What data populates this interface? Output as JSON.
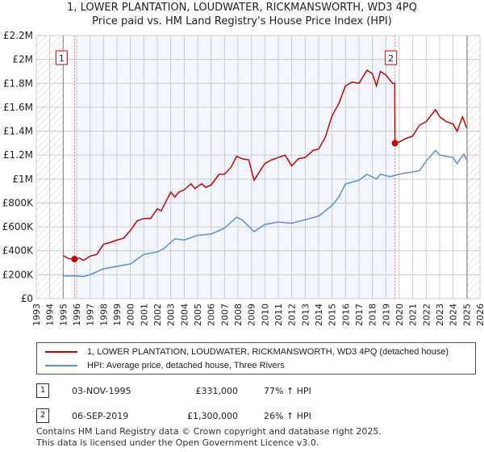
{
  "title": "1, LOWER PLANTATION, LOUDWATER, RICKMANSWORTH, WD3 4PQ",
  "subtitle": "Price paid vs. HM Land Registry's House Price Index (HPI)",
  "chart_data": {
    "type": "line",
    "xlim": [
      1993,
      2026
    ],
    "ylim": [
      0,
      2200000
    ],
    "x_ticks": [
      "1993",
      "1994",
      "1995",
      "1996",
      "1997",
      "1998",
      "1999",
      "2000",
      "2001",
      "2002",
      "2003",
      "2004",
      "2005",
      "2006",
      "2007",
      "2008",
      "2009",
      "2010",
      "2011",
      "2012",
      "2013",
      "2014",
      "2015",
      "2016",
      "2017",
      "2018",
      "2019",
      "2020",
      "2021",
      "2022",
      "2023",
      "2024",
      "2025",
      "2026"
    ],
    "y_ticks": [
      {
        "v": 0,
        "label": "£0"
      },
      {
        "v": 200000,
        "label": "£200K"
      },
      {
        "v": 400000,
        "label": "£400K"
      },
      {
        "v": 600000,
        "label": "£600K"
      },
      {
        "v": 800000,
        "label": "£800K"
      },
      {
        "v": 1000000,
        "label": "£1M"
      },
      {
        "v": 1200000,
        "label": "£1.2M"
      },
      {
        "v": 1400000,
        "label": "£1.4M"
      },
      {
        "v": 1600000,
        "label": "£1.6M"
      },
      {
        "v": 1800000,
        "label": "£1.8M"
      },
      {
        "v": 2000000,
        "label": "£2M"
      },
      {
        "v": 2200000,
        "label": "£2.2M"
      }
    ],
    "data_range": [
      1995.0,
      2025.05
    ],
    "ownership_period": [
      1995.84,
      2019.68
    ],
    "series": [
      {
        "name": "1, LOWER PLANTATION, LOUDWATER, RICKMANSWORTH, WD3 4PQ (detached house)",
        "color": "#cc0000",
        "x": [
          1995.0,
          1995.4,
          1995.84,
          1996.2,
          1996.5,
          1997,
          1997.5,
          1998,
          1998.5,
          1999,
          1999.5,
          2000,
          2000.5,
          2001,
          2001.5,
          2002,
          2002.3,
          2003,
          2003.3,
          2003.6,
          2004,
          2004.5,
          2004.8,
          2005.3,
          2005.6,
          2006,
          2006.6,
          2007,
          2007.5,
          2007.9,
          2008.3,
          2008.8,
          2009.2,
          2009.6,
          2010,
          2010.5,
          2011,
          2011.5,
          2012,
          2012.5,
          2013,
          2013.6,
          2014,
          2014.5,
          2015,
          2015.5,
          2016,
          2016.5,
          2017,
          2017.6,
          2018,
          2018.3,
          2018.6,
          2019,
          2019.5,
          2019.66,
          2019.68,
          2020,
          2020.5,
          2021,
          2021.5,
          2022,
          2022.7,
          2023,
          2023.5,
          2024,
          2024.3,
          2024.7,
          2025
        ],
        "y": [
          360000,
          335000,
          331000,
          340000,
          320000,
          355000,
          370000,
          455000,
          470000,
          490000,
          505000,
          570000,
          650000,
          670000,
          670000,
          750000,
          735000,
          890000,
          850000,
          890000,
          910000,
          960000,
          920000,
          960000,
          930000,
          950000,
          1040000,
          1040000,
          1100000,
          1190000,
          1170000,
          1160000,
          990000,
          1060000,
          1130000,
          1160000,
          1180000,
          1200000,
          1110000,
          1170000,
          1180000,
          1240000,
          1250000,
          1350000,
          1530000,
          1630000,
          1780000,
          1810000,
          1800000,
          1910000,
          1880000,
          1780000,
          1900000,
          1870000,
          1800000,
          1800000,
          1300000,
          1310000,
          1340000,
          1360000,
          1450000,
          1480000,
          1580000,
          1520000,
          1480000,
          1460000,
          1400000,
          1520000,
          1430000
        ]
      },
      {
        "name": "HPI: Average price, detached house, Three Rivers",
        "color": "#5b8fd4",
        "x": [
          1995.0,
          1996,
          1996.5,
          1997,
          1998,
          1999,
          2000,
          2000.5,
          2001,
          2002,
          2002.5,
          2003.3,
          2004,
          2005,
          2006,
          2007,
          2007.9,
          2008.3,
          2009.2,
          2010,
          2011,
          2012,
          2013,
          2014,
          2015,
          2015.5,
          2016,
          2017,
          2017.6,
          2018.3,
          2018.6,
          2019.3,
          2020,
          2021,
          2021.5,
          2022,
          2022.7,
          2023,
          2024,
          2024.3,
          2024.8,
          2025
        ],
        "y": [
          190000,
          190000,
          185000,
          200000,
          250000,
          270000,
          290000,
          330000,
          370000,
          390000,
          420000,
          500000,
          490000,
          530000,
          540000,
          590000,
          680000,
          660000,
          560000,
          620000,
          640000,
          630000,
          660000,
          690000,
          780000,
          850000,
          960000,
          990000,
          1040000,
          1000000,
          1040000,
          1020000,
          1040000,
          1060000,
          1070000,
          1150000,
          1240000,
          1200000,
          1180000,
          1130000,
          1210000,
          1160000
        ]
      }
    ],
    "annotations": [
      {
        "label": "1",
        "x": 1995.84,
        "y": 331000
      },
      {
        "label": "2",
        "x": 2019.68,
        "y": 1300000
      }
    ]
  },
  "legend": {
    "series1": "1, LOWER PLANTATION, LOUDWATER, RICKMANSWORTH, WD3 4PQ (detached house)",
    "series2": "HPI: Average price, detached house, Three Rivers"
  },
  "transactions": [
    {
      "num": "1",
      "date": "03-NOV-1995",
      "price": "£331,000",
      "hpi": "77% ↑ HPI"
    },
    {
      "num": "2",
      "date": "06-SEP-2019",
      "price": "£1,300,000",
      "hpi": "26% ↑ HPI"
    }
  ],
  "footer": [
    "Contains HM Land Registry data © Crown copyright and database right 2025.",
    "This data is licensed under the Open Government Licence v3.0."
  ]
}
